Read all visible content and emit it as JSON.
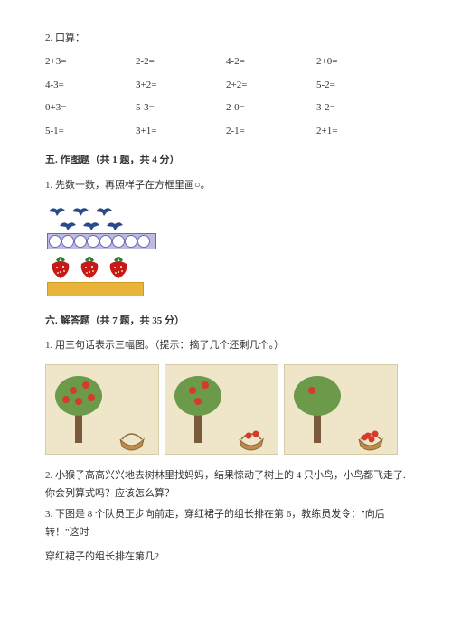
{
  "q2": {
    "label": "2. 口算："
  },
  "calc": {
    "rows": [
      [
        "2+3=",
        "2-2=",
        "4-2=",
        "2+0="
      ],
      [
        "4-3=",
        "3+2=",
        "2+2=",
        "5-2="
      ],
      [
        "0+3=",
        "5-3=",
        "2-0=",
        "3-2="
      ],
      [
        "5-1=",
        "3+1=",
        "2-1=",
        "2+1="
      ]
    ]
  },
  "sec5": {
    "header": "五. 作图题（共 1 题，共 4 分）",
    "q1": "1. 先数一数，再照样子在方框里画○。"
  },
  "sec6": {
    "header": "六. 解答题（共 7 题，共 35 分）",
    "q1": "1. 用三句话表示三幅图。（提示：摘了几个还剩几个。）",
    "q2": "2. 小猴子高高兴兴地去树林里找妈妈，结果惊动了树上的 4 只小鸟，小鸟都飞走了. 你会列算式吗？应该怎么算？",
    "q3a": "3. 下图是 8 个队员正步向前走，穿红裙子的组长排在第 6，教练员发令：\"向后转！\"这时",
    "q3b": "穿红裙子的组长排在第几?"
  },
  "fig1": {
    "bird_count": 6,
    "bird_color": "#2a4a8a",
    "circle_count": 8,
    "circle_border": "#6b6bb5",
    "circle_bg": "#bdbbe0",
    "strawberry_count": 3,
    "straw_red": "#c61a1a",
    "straw_leaf": "#2a7a2a",
    "gold_bar": "#e8b43a"
  },
  "trees": {
    "panel_bg": "#efe6c9",
    "trunk": "#7a5a3a",
    "leaf": "#6a9a4a",
    "apple": "#d63a2a",
    "basket": "#c08a4a",
    "panels": [
      {
        "apples_on_tree": 5,
        "apples_in_basket": 0
      },
      {
        "apples_on_tree": 3,
        "apples_in_basket": 2
      },
      {
        "apples_on_tree": 1,
        "apples_in_basket": 4
      }
    ]
  }
}
